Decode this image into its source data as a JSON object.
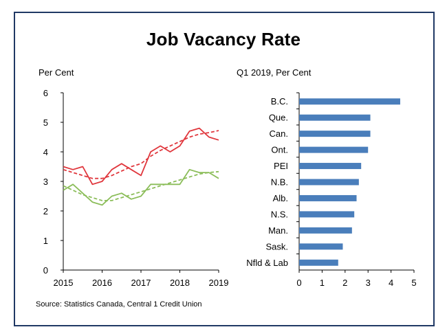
{
  "title": "Job Vacancy Rate",
  "source": "Source: Statistics Canada, Central 1 Credit Union",
  "colors": {
    "frame": "#1f3864",
    "red": "#e0363c",
    "green": "#8bbd59",
    "bar": "#4a7ebb"
  },
  "chart_data": [
    {
      "type": "line",
      "ylabel": "Per Cent",
      "xlabel": "",
      "ylim": [
        0,
        6
      ],
      "xlim": [
        2015,
        2019
      ],
      "yticks": [
        "0",
        "1",
        "2",
        "3",
        "4",
        "5",
        "6"
      ],
      "xticks": [
        "2015",
        "2016",
        "2017",
        "2018",
        "2019"
      ],
      "legend": "none",
      "grid": false,
      "series": [
        {
          "color": "#e0363c",
          "style": "solid",
          "x": [
            2015,
            2015.25,
            2015.5,
            2015.75,
            2016,
            2016.25,
            2016.5,
            2016.75,
            2017,
            2017.25,
            2017.5,
            2017.75,
            2018,
            2018.25,
            2018.5,
            2018.75,
            2019
          ],
          "values": [
            3.5,
            3.4,
            3.5,
            2.9,
            3.0,
            3.4,
            3.6,
            3.4,
            3.2,
            4.0,
            4.2,
            4.0,
            4.2,
            4.7,
            4.8,
            4.5,
            4.4
          ]
        },
        {
          "color": "#e0363c",
          "style": "dashed",
          "x": [
            2015,
            2015.25,
            2015.5,
            2015.75,
            2016,
            2016.25,
            2016.5,
            2016.75,
            2017,
            2017.25,
            2017.5,
            2017.75,
            2018,
            2018.25,
            2018.5,
            2018.75,
            2019
          ],
          "values": [
            3.4,
            3.3,
            3.2,
            3.1,
            3.1,
            3.2,
            3.35,
            3.5,
            3.6,
            3.85,
            4.05,
            4.2,
            4.35,
            4.5,
            4.6,
            4.65,
            4.72
          ]
        },
        {
          "color": "#8bbd59",
          "style": "solid",
          "x": [
            2015,
            2015.25,
            2015.5,
            2015.75,
            2016,
            2016.25,
            2016.5,
            2016.75,
            2017,
            2017.25,
            2017.5,
            2017.75,
            2018,
            2018.25,
            2018.5,
            2018.75,
            2019
          ],
          "values": [
            2.7,
            2.9,
            2.6,
            2.3,
            2.2,
            2.5,
            2.6,
            2.4,
            2.5,
            2.9,
            2.9,
            2.9,
            2.9,
            3.4,
            3.3,
            3.3,
            3.1
          ]
        },
        {
          "color": "#8bbd59",
          "style": "dashed",
          "x": [
            2015,
            2015.25,
            2015.5,
            2015.75,
            2016,
            2016.25,
            2016.5,
            2016.75,
            2017,
            2017.25,
            2017.5,
            2017.75,
            2018,
            2018.25,
            2018.5,
            2018.75,
            2019
          ],
          "values": [
            2.85,
            2.7,
            2.55,
            2.45,
            2.35,
            2.35,
            2.45,
            2.55,
            2.65,
            2.75,
            2.85,
            2.95,
            3.05,
            3.15,
            3.25,
            3.3,
            3.33
          ]
        }
      ]
    },
    {
      "type": "bar",
      "orientation": "horizontal",
      "ylabel": "Q1 2019, Per Cent",
      "xlabel": "",
      "xlim": [
        0,
        5
      ],
      "xticks": [
        "0",
        "1",
        "2",
        "3",
        "4",
        "5"
      ],
      "legend": "none",
      "grid": false,
      "categories": [
        "B.C.",
        "Que.",
        "Can.",
        "Ont.",
        "PEI",
        "N.B.",
        "Alb.",
        "N.S.",
        "Man.",
        "Sask.",
        "Nfld & Lab"
      ],
      "values": [
        4.4,
        3.1,
        3.1,
        3.0,
        2.7,
        2.6,
        2.5,
        2.4,
        2.3,
        1.9,
        1.7
      ]
    }
  ]
}
